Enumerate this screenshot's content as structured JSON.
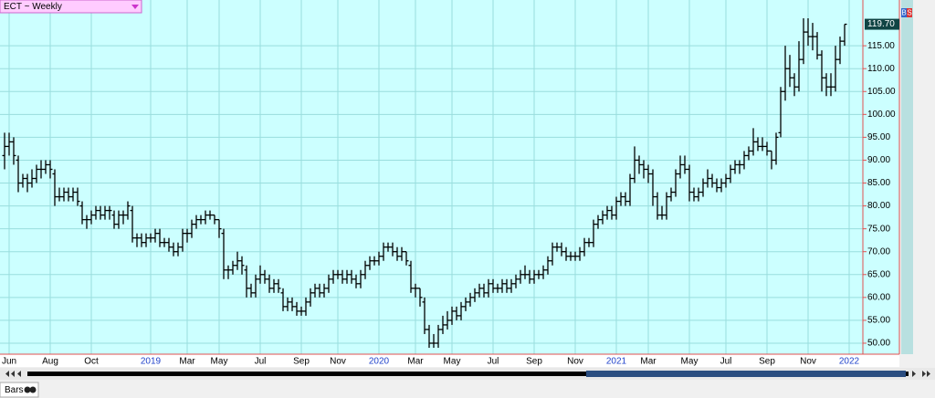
{
  "chart_data": {
    "type": "ohlc",
    "title": "ECT ~ Weekly",
    "tab": "Bars",
    "buttons": [
      "B",
      "S"
    ],
    "color": "#000000",
    "background": "#ccffff",
    "grid": true,
    "ylim": [
      47.6,
      125
    ],
    "xlim": [
      -1,
      188
    ],
    "yticks": [
      {
        "value": 50,
        "label": "50.00"
      },
      {
        "value": 55,
        "label": "55.00"
      },
      {
        "value": 60,
        "label": "60.00"
      },
      {
        "value": 65,
        "label": "65.00"
      },
      {
        "value": 70,
        "label": "70.00"
      },
      {
        "value": 75,
        "label": "75.00"
      },
      {
        "value": 80,
        "label": "80.00"
      },
      {
        "value": 85,
        "label": "85.00"
      },
      {
        "value": 90,
        "label": "90.00"
      },
      {
        "value": 95,
        "label": "95.00"
      },
      {
        "value": 100,
        "label": "100.00"
      },
      {
        "value": 105,
        "label": "105.00"
      },
      {
        "value": 110,
        "label": "110.00"
      },
      {
        "value": 115,
        "label": "115.00"
      }
    ],
    "xticks": [
      {
        "value": 1,
        "label": "Jun"
      },
      {
        "value": 10,
        "label": "Aug"
      },
      {
        "value": 19,
        "label": "Oct"
      },
      {
        "value": 32,
        "label": "2019"
      },
      {
        "value": 40,
        "label": "Mar"
      },
      {
        "value": 47,
        "label": "May"
      },
      {
        "value": 56,
        "label": "Jul"
      },
      {
        "value": 65,
        "label": "Sep"
      },
      {
        "value": 73,
        "label": "Nov"
      },
      {
        "value": 82,
        "label": "2020"
      },
      {
        "value": 90,
        "label": "Mar"
      },
      {
        "value": 98,
        "label": "May"
      },
      {
        "value": 107,
        "label": "Jul"
      },
      {
        "value": 116,
        "label": "Sep"
      },
      {
        "value": 125,
        "label": "Nov"
      },
      {
        "value": 134,
        "label": "2021"
      },
      {
        "value": 141,
        "label": "Mar"
      },
      {
        "value": 150,
        "label": "May"
      },
      {
        "value": 158,
        "label": "Jul"
      },
      {
        "value": 167,
        "label": "Sep"
      },
      {
        "value": 176,
        "label": "Nov"
      },
      {
        "value": 185,
        "label": "2022"
      }
    ],
    "last_price": {
      "value": 119.7,
      "label": "119.70"
    },
    "bars": [
      [
        91,
        96,
        88,
        93
      ],
      [
        93,
        96,
        91,
        94
      ],
      [
        94,
        95,
        89,
        91
      ],
      [
        90,
        91,
        83,
        85
      ],
      [
        85,
        87,
        84,
        86
      ],
      [
        86,
        87,
        83,
        85
      ],
      [
        85,
        88,
        84,
        86
      ],
      [
        86,
        89,
        85,
        88
      ],
      [
        88,
        90,
        86,
        88
      ],
      [
        88,
        90,
        87,
        89
      ],
      [
        89,
        90,
        86,
        88
      ],
      [
        87,
        88,
        80,
        82
      ],
      [
        82,
        84,
        81,
        82
      ],
      [
        82,
        84,
        81,
        83
      ],
      [
        83,
        84,
        81,
        82
      ],
      [
        82,
        84,
        81,
        83
      ],
      [
        83,
        84,
        80,
        81
      ],
      [
        80,
        81,
        76,
        77
      ],
      [
        77,
        78,
        75,
        77
      ],
      [
        77,
        79,
        76,
        78
      ],
      [
        78,
        80,
        77,
        79
      ],
      [
        79,
        80,
        77,
        78
      ],
      [
        78,
        80,
        77,
        79
      ],
      [
        79,
        80,
        77,
        79
      ],
      [
        78,
        79,
        75,
        76
      ],
      [
        76,
        79,
        75,
        78
      ],
      [
        78,
        79,
        76,
        78
      ],
      [
        78,
        81,
        77,
        80
      ],
      [
        79,
        80,
        72,
        73
      ],
      [
        73,
        74,
        71,
        73
      ],
      [
        73,
        74,
        71,
        72
      ],
      [
        72,
        74,
        71,
        73
      ],
      [
        73,
        74,
        72,
        73
      ],
      [
        73,
        75,
        72,
        74
      ],
      [
        74,
        75,
        71,
        72
      ],
      [
        72,
        73,
        71,
        72
      ],
      [
        72,
        73,
        70,
        71
      ],
      [
        71,
        72,
        69,
        70
      ],
      [
        70,
        72,
        69,
        71
      ],
      [
        71,
        75,
        70,
        74
      ],
      [
        74,
        75,
        72,
        74
      ],
      [
        74,
        77,
        73,
        76
      ],
      [
        76,
        78,
        75,
        77
      ],
      [
        77,
        78,
        76,
        77
      ],
      [
        77,
        79,
        76,
        78
      ],
      [
        78,
        79,
        77,
        78
      ],
      [
        78,
        78,
        76,
        77
      ],
      [
        77,
        77,
        73,
        75
      ],
      [
        74,
        75,
        64,
        66
      ],
      [
        66,
        67,
        64,
        66
      ],
      [
        66,
        68,
        65,
        67
      ],
      [
        67,
        70,
        66,
        68
      ],
      [
        68,
        69,
        65,
        67
      ],
      [
        66,
        67,
        60,
        62
      ],
      [
        62,
        63,
        60,
        61
      ],
      [
        61,
        65,
        60,
        64
      ],
      [
        64,
        67,
        63,
        65
      ],
      [
        65,
        66,
        63,
        64
      ],
      [
        64,
        65,
        61,
        62
      ],
      [
        62,
        64,
        61,
        63
      ],
      [
        63,
        64,
        61,
        62
      ],
      [
        61,
        62,
        57,
        58
      ],
      [
        58,
        60,
        57,
        59
      ],
      [
        59,
        60,
        57,
        58
      ],
      [
        58,
        59,
        56,
        57
      ],
      [
        57,
        58,
        56,
        57
      ],
      [
        57,
        60,
        56,
        59
      ],
      [
        59,
        62,
        58,
        61
      ],
      [
        61,
        63,
        60,
        62
      ],
      [
        62,
        63,
        60,
        61
      ],
      [
        61,
        63,
        60,
        62
      ],
      [
        62,
        65,
        61,
        64
      ],
      [
        64,
        66,
        63,
        65
      ],
      [
        65,
        66,
        64,
        65
      ],
      [
        65,
        66,
        63,
        64
      ],
      [
        64,
        66,
        63,
        65
      ],
      [
        65,
        66,
        63,
        64
      ],
      [
        64,
        65,
        62,
        63
      ],
      [
        63,
        66,
        62,
        65
      ],
      [
        65,
        68,
        64,
        67
      ],
      [
        67,
        69,
        66,
        68
      ],
      [
        68,
        69,
        67,
        68
      ],
      [
        68,
        70,
        67,
        69
      ],
      [
        69,
        72,
        68,
        71
      ],
      [
        71,
        72,
        70,
        71
      ],
      [
        71,
        72,
        69,
        70
      ],
      [
        70,
        71,
        68,
        69
      ],
      [
        69,
        71,
        68,
        70
      ],
      [
        70,
        70,
        67,
        68
      ],
      [
        67,
        68,
        61,
        62
      ],
      [
        62,
        63,
        60,
        62
      ],
      [
        62,
        62,
        58,
        60
      ],
      [
        59,
        60,
        52,
        53
      ],
      [
        53,
        54,
        49,
        50
      ],
      [
        50,
        52,
        49,
        50
      ],
      [
        50,
        54,
        49,
        53
      ],
      [
        53,
        56,
        52,
        54
      ],
      [
        54,
        57,
        53,
        55
      ],
      [
        55,
        58,
        54,
        57
      ],
      [
        57,
        58,
        55,
        56
      ],
      [
        56,
        59,
        55,
        58
      ],
      [
        58,
        60,
        57,
        59
      ],
      [
        59,
        61,
        58,
        60
      ],
      [
        60,
        62,
        59,
        61
      ],
      [
        61,
        63,
        60,
        62
      ],
      [
        62,
        63,
        60,
        61
      ],
      [
        61,
        64,
        60,
        63
      ],
      [
        63,
        64,
        61,
        62
      ],
      [
        62,
        63,
        61,
        62
      ],
      [
        62,
        64,
        61,
        63
      ],
      [
        63,
        64,
        61,
        62
      ],
      [
        62,
        64,
        61,
        63
      ],
      [
        63,
        65,
        62,
        64
      ],
      [
        64,
        66,
        63,
        65
      ],
      [
        65,
        67,
        64,
        65
      ],
      [
        65,
        66,
        63,
        64
      ],
      [
        64,
        66,
        63,
        65
      ],
      [
        65,
        66,
        64,
        65
      ],
      [
        65,
        67,
        64,
        66
      ],
      [
        66,
        69,
        65,
        68
      ],
      [
        68,
        72,
        67,
        71
      ],
      [
        71,
        72,
        70,
        71
      ],
      [
        71,
        72,
        69,
        70
      ],
      [
        70,
        71,
        68,
        69
      ],
      [
        69,
        70,
        68,
        69
      ],
      [
        69,
        70,
        68,
        69
      ],
      [
        69,
        71,
        68,
        70
      ],
      [
        70,
        73,
        69,
        72
      ],
      [
        72,
        73,
        71,
        72
      ],
      [
        72,
        77,
        71,
        76
      ],
      [
        76,
        78,
        75,
        77
      ],
      [
        77,
        79,
        76,
        78
      ],
      [
        78,
        80,
        77,
        79
      ],
      [
        79,
        80,
        77,
        78
      ],
      [
        78,
        82,
        77,
        81
      ],
      [
        81,
        83,
        80,
        82
      ],
      [
        82,
        83,
        80,
        81
      ],
      [
        81,
        87,
        80,
        86
      ],
      [
        86,
        93,
        85,
        90
      ],
      [
        90,
        91,
        87,
        89
      ],
      [
        89,
        90,
        86,
        88
      ],
      [
        88,
        89,
        85,
        87
      ],
      [
        87,
        88,
        80,
        82
      ],
      [
        82,
        83,
        77,
        78
      ],
      [
        78,
        80,
        77,
        78
      ],
      [
        78,
        83,
        77,
        82
      ],
      [
        82,
        84,
        81,
        83
      ],
      [
        83,
        88,
        82,
        87
      ],
      [
        87,
        91,
        86,
        89
      ],
      [
        89,
        91,
        87,
        88
      ],
      [
        88,
        89,
        81,
        83
      ],
      [
        83,
        84,
        81,
        82
      ],
      [
        82,
        84,
        81,
        83
      ],
      [
        83,
        86,
        82,
        85
      ],
      [
        85,
        88,
        84,
        86
      ],
      [
        86,
        87,
        84,
        85
      ],
      [
        85,
        86,
        83,
        84
      ],
      [
        84,
        86,
        83,
        85
      ],
      [
        85,
        87,
        84,
        86
      ],
      [
        86,
        89,
        85,
        88
      ],
      [
        88,
        90,
        87,
        89
      ],
      [
        89,
        90,
        87,
        89
      ],
      [
        89,
        92,
        88,
        91
      ],
      [
        91,
        93,
        90,
        92
      ],
      [
        92,
        97,
        91,
        94
      ],
      [
        94,
        95,
        92,
        93
      ],
      [
        93,
        95,
        92,
        93
      ],
      [
        93,
        94,
        91,
        92
      ],
      [
        92,
        92,
        88,
        90
      ],
      [
        90,
        96,
        89,
        95
      ],
      [
        96,
        106,
        95,
        105
      ],
      [
        105,
        115,
        103,
        110
      ],
      [
        110,
        113,
        106,
        108
      ],
      [
        108,
        109,
        104,
        106
      ],
      [
        106,
        116,
        105,
        112
      ],
      [
        112,
        121,
        111,
        118
      ],
      [
        118,
        121,
        115,
        117
      ],
      [
        117,
        120,
        114,
        117
      ],
      [
        117,
        118,
        112,
        113
      ],
      [
        113,
        114,
        105,
        108
      ],
      [
        108,
        109,
        104,
        106
      ],
      [
        106,
        109,
        104,
        106
      ],
      [
        106,
        115,
        105,
        112
      ],
      [
        112,
        117,
        111,
        116
      ],
      [
        116,
        119.7,
        115,
        119.7
      ]
    ]
  }
}
